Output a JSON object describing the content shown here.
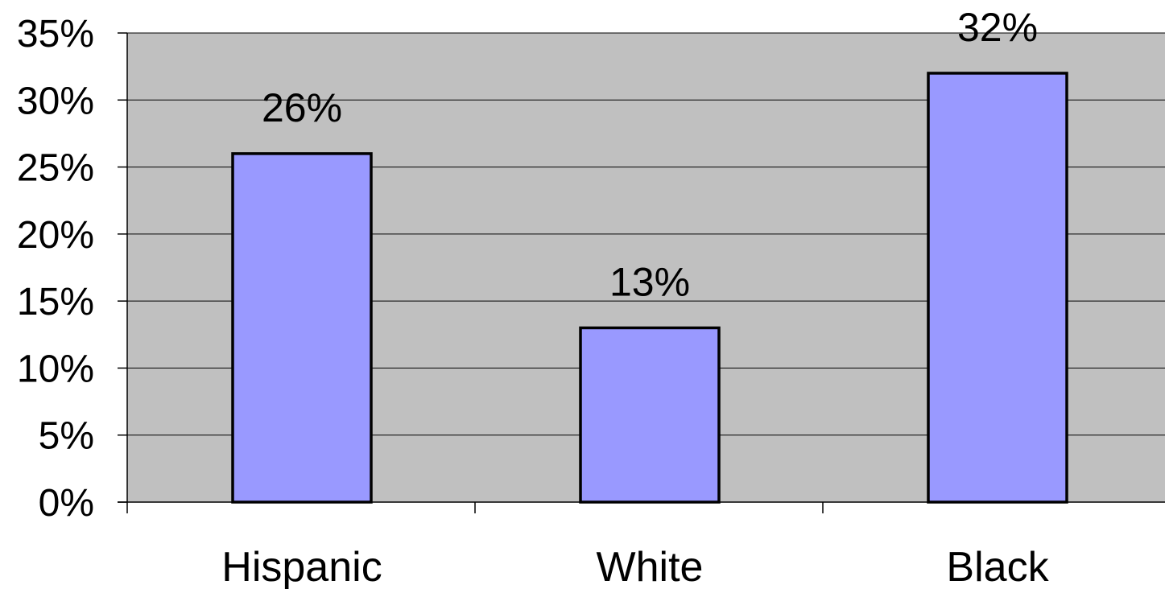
{
  "chart_data": {
    "type": "bar",
    "categories": [
      "Hispanic",
      "White",
      "Black"
    ],
    "values": [
      26,
      13,
      32
    ],
    "data_labels": [
      "26%",
      "13%",
      "32%"
    ],
    "title": "",
    "xlabel": "",
    "ylabel": "",
    "ylim": [
      0,
      35
    ],
    "y_ticks": [
      0,
      5,
      10,
      15,
      20,
      25,
      30,
      35
    ],
    "y_tick_labels": [
      "0%",
      "5%",
      "10%",
      "15%",
      "20%",
      "25%",
      "30%",
      "35%"
    ],
    "grid": true,
    "legend": "none",
    "colors": {
      "bar_fill": "#9999ff",
      "bar_stroke": "#000000",
      "plot_background": "#c0c0c0",
      "gridline": "#000000"
    }
  }
}
